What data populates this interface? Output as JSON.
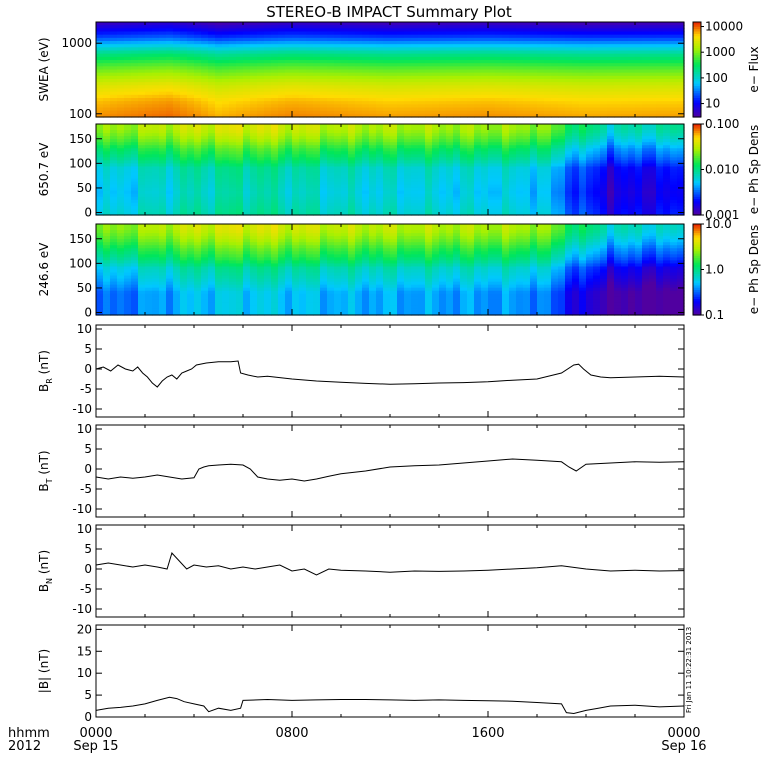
{
  "title": "STEREO-B IMPACT Summary Plot",
  "stamp": "Fri Jan 11 10:22:31 2013",
  "time_axis": {
    "corner_labels": [
      "hhmm",
      "2012"
    ],
    "ticks": [
      {
        "hour": 0,
        "label": "0000",
        "date": "Sep 15"
      },
      {
        "hour": 8,
        "label": "0800",
        "date": ""
      },
      {
        "hour": 16,
        "label": "1600",
        "date": ""
      },
      {
        "hour": 24,
        "label": "0000",
        "date": "Sep 16"
      }
    ],
    "range_hours": [
      0,
      24
    ]
  },
  "chart_data": [
    {
      "type": "heatmap",
      "ylabel": "SWEA (eV)",
      "y_scale": "log",
      "ylim": [
        90,
        2000
      ],
      "yticks": [
        {
          "v": 100,
          "label": "100"
        },
        {
          "v": 1000,
          "label": "1000"
        }
      ],
      "colorbar": {
        "label": "e− Flux",
        "scale": "log",
        "range": [
          3,
          15000
        ],
        "ticks": [
          {
            "v": 10000,
            "label": "10000"
          },
          {
            "v": 1000,
            "label": "1000"
          },
          {
            "v": 100,
            "label": "100"
          },
          {
            "v": 10,
            "label": "10"
          }
        ]
      },
      "description_rows_eV": [
        1800,
        1000,
        600,
        350,
        200,
        120,
        95
      ],
      "flux_profile": [
        4,
        20,
        200,
        800,
        2500,
        5000,
        7000
      ],
      "time_modulation": [
        {
          "hour": 0,
          "f": 1.0
        },
        {
          "hour": 3,
          "f": 1.3
        },
        {
          "hour": 5,
          "f": 0.8
        },
        {
          "hour": 8,
          "f": 1.1
        },
        {
          "hour": 12,
          "f": 0.9
        },
        {
          "hour": 16,
          "f": 1.0
        },
        {
          "hour": 20,
          "f": 0.85
        },
        {
          "hour": 24,
          "f": 0.9
        }
      ]
    },
    {
      "type": "heatmap",
      "ylabel": "650.7 eV",
      "ylim": [
        -5,
        180
      ],
      "yticks": [
        {
          "v": 0,
          "label": "0"
        },
        {
          "v": 50,
          "label": "50"
        },
        {
          "v": 100,
          "label": "100"
        },
        {
          "v": 150,
          "label": "150"
        }
      ],
      "colorbar": {
        "label": "e− Ph Sp Dens",
        "scale": "log",
        "range": [
          0.001,
          0.1
        ],
        "ticks": [
          {
            "v": 0.1,
            "label": "0.100"
          },
          {
            "v": 0.01,
            "label": "0.010"
          },
          {
            "v": 0.001,
            "label": "0.001"
          }
        ]
      },
      "pitch_profile": [
        {
          "angle": 170,
          "v": 0.025
        },
        {
          "angle": 130,
          "v": 0.012
        },
        {
          "angle": 90,
          "v": 0.006
        },
        {
          "angle": 40,
          "v": 0.005
        },
        {
          "angle": 0,
          "v": 0.006
        }
      ],
      "time_modulation": [
        {
          "hour": 0,
          "f": 0.9
        },
        {
          "hour": 4,
          "f": 1.4
        },
        {
          "hour": 6,
          "f": 1.6
        },
        {
          "hour": 10,
          "f": 1.2
        },
        {
          "hour": 14,
          "f": 1.1
        },
        {
          "hour": 18,
          "f": 1.0
        },
        {
          "hour": 19.5,
          "f": 0.5
        },
        {
          "hour": 21,
          "f": 0.3
        },
        {
          "hour": 24,
          "f": 0.35
        }
      ]
    },
    {
      "type": "heatmap",
      "ylabel": "246.6 eV",
      "ylim": [
        -5,
        180
      ],
      "yticks": [
        {
          "v": 0,
          "label": "0"
        },
        {
          "v": 50,
          "label": "50"
        },
        {
          "v": 100,
          "label": "100"
        },
        {
          "v": 150,
          "label": "150"
        }
      ],
      "colorbar": {
        "label": "e− Ph Sp Dens",
        "scale": "log",
        "range": [
          0.1,
          10
        ],
        "ticks": [
          {
            "v": 10,
            "label": "10.0"
          },
          {
            "v": 1,
            "label": "1.0"
          },
          {
            "v": 0.1,
            "label": "0.1"
          }
        ]
      },
      "pitch_profile": [
        {
          "angle": 170,
          "v": 2.5
        },
        {
          "angle": 130,
          "v": 1.3
        },
        {
          "angle": 90,
          "v": 0.6
        },
        {
          "angle": 40,
          "v": 0.35
        },
        {
          "angle": 0,
          "v": 0.35
        }
      ],
      "time_modulation": [
        {
          "hour": 0,
          "f": 0.8
        },
        {
          "hour": 4,
          "f": 1.4
        },
        {
          "hour": 6,
          "f": 1.6
        },
        {
          "hour": 10,
          "f": 1.3
        },
        {
          "hour": 14,
          "f": 1.2
        },
        {
          "hour": 18,
          "f": 1.1
        },
        {
          "hour": 19.5,
          "f": 0.5
        },
        {
          "hour": 21,
          "f": 0.3
        },
        {
          "hour": 24,
          "f": 0.25
        }
      ]
    },
    {
      "type": "line",
      "ylabel_main": "B",
      "ylabel_sub": "R",
      "ylabel_unit": " (nT)",
      "ylim": [
        -12,
        11
      ],
      "yticks": [
        {
          "v": 10,
          "label": "10"
        },
        {
          "v": 5,
          "label": "5"
        },
        {
          "v": 0,
          "label": "0"
        },
        {
          "v": -5,
          "label": "-5"
        },
        {
          "v": -10,
          "label": "-10"
        }
      ],
      "x": [
        0,
        0.3,
        0.6,
        0.9,
        1.2,
        1.5,
        1.7,
        1.9,
        2.1,
        2.3,
        2.5,
        2.7,
        2.9,
        3.1,
        3.3,
        3.5,
        3.7,
        3.9,
        4.1,
        4.5,
        5.0,
        5.5,
        5.8,
        5.9,
        6.2,
        6.6,
        7.0,
        8.0,
        9.0,
        10.0,
        11.0,
        12.0,
        13.0,
        14.0,
        15.0,
        16.0,
        17.0,
        18.0,
        19.0,
        19.5,
        19.7,
        19.9,
        20.2,
        20.6,
        21.0,
        22.0,
        23.0,
        24.0
      ],
      "values": [
        0,
        0.5,
        -0.5,
        1,
        0,
        -0.5,
        0.5,
        -1,
        -2,
        -3.5,
        -4.5,
        -3,
        -2,
        -1.5,
        -2.5,
        -1,
        -0.5,
        0,
        1,
        1.5,
        1.8,
        1.8,
        2,
        -1,
        -1.5,
        -2,
        -1.8,
        -2.5,
        -3,
        -3.3,
        -3.6,
        -3.8,
        -3.7,
        -3.5,
        -3.4,
        -3.2,
        -2.8,
        -2.5,
        -1,
        1,
        1.2,
        0,
        -1.5,
        -2,
        -2.2,
        -2,
        -1.8,
        -2
      ]
    },
    {
      "type": "line",
      "ylabel_main": "B",
      "ylabel_sub": "T",
      "ylabel_unit": " (nT)",
      "ylim": [
        -12,
        11
      ],
      "yticks": [
        {
          "v": 10,
          "label": "10"
        },
        {
          "v": 5,
          "label": "5"
        },
        {
          "v": 0,
          "label": "0"
        },
        {
          "v": -5,
          "label": "-5"
        },
        {
          "v": -10,
          "label": "-10"
        }
      ],
      "x": [
        0,
        0.5,
        1.0,
        1.5,
        2.0,
        2.5,
        3.0,
        3.5,
        4.0,
        4.2,
        4.4,
        4.6,
        5.0,
        5.5,
        6.0,
        6.3,
        6.6,
        7.0,
        7.5,
        8.0,
        8.5,
        9.0,
        9.5,
        10.0,
        11.0,
        12.0,
        13.0,
        14.0,
        15.0,
        16.0,
        17.0,
        18.0,
        19.0,
        19.3,
        19.6,
        20.0,
        21.0,
        22.0,
        23.0,
        24.0
      ],
      "values": [
        -2,
        -2.5,
        -2,
        -2.3,
        -2,
        -1.5,
        -2,
        -2.5,
        -2.2,
        0,
        0.5,
        0.8,
        1,
        1.2,
        1,
        0,
        -2,
        -2.5,
        -2.8,
        -2.5,
        -3,
        -2.5,
        -1.8,
        -1.2,
        -0.5,
        0.5,
        0.8,
        1,
        1.5,
        2,
        2.5,
        2.2,
        1.8,
        0.5,
        -0.5,
        1.2,
        1.5,
        1.8,
        1.7,
        1.8
      ]
    },
    {
      "type": "line",
      "ylabel_main": "B",
      "ylabel_sub": "N",
      "ylabel_unit": " (nT)",
      "ylim": [
        -12,
        11
      ],
      "yticks": [
        {
          "v": 10,
          "label": "10"
        },
        {
          "v": 5,
          "label": "5"
        },
        {
          "v": 0,
          "label": "0"
        },
        {
          "v": -5,
          "label": "-5"
        },
        {
          "v": -10,
          "label": "-10"
        }
      ],
      "x": [
        0,
        0.5,
        1.0,
        1.5,
        2.0,
        2.5,
        2.9,
        3.1,
        3.4,
        3.7,
        4.0,
        4.5,
        5.0,
        5.5,
        6.0,
        6.5,
        7.0,
        7.5,
        8.0,
        8.5,
        9.0,
        9.5,
        10.0,
        11.0,
        12.0,
        13.0,
        14.0,
        15.0,
        16.0,
        17.0,
        18.0,
        19.0,
        20.0,
        21.0,
        22.0,
        23.0,
        24.0
      ],
      "values": [
        1,
        1.5,
        1,
        0.5,
        1,
        0.5,
        0,
        4,
        2,
        0,
        1,
        0.5,
        0.8,
        0,
        0.5,
        0,
        0.5,
        1,
        -0.5,
        0,
        -1.5,
        0,
        -0.3,
        -0.5,
        -0.8,
        -0.5,
        -0.6,
        -0.5,
        -0.3,
        0,
        0.3,
        0.8,
        0,
        -0.5,
        -0.3,
        -0.5,
        -0.4
      ]
    },
    {
      "type": "line",
      "ylabel": "|B| (nT)",
      "ylim": [
        0,
        21
      ],
      "yticks": [
        {
          "v": 20,
          "label": "20"
        },
        {
          "v": 15,
          "label": "15"
        },
        {
          "v": 10,
          "label": "10"
        },
        {
          "v": 5,
          "label": "5"
        },
        {
          "v": 0,
          "label": "0"
        }
      ],
      "x": [
        0,
        0.5,
        1.0,
        1.5,
        2.0,
        2.5,
        3.0,
        3.3,
        3.6,
        4.0,
        4.4,
        4.6,
        5.0,
        5.5,
        5.9,
        6.0,
        7.0,
        8.0,
        9.0,
        10.0,
        11.0,
        12.0,
        13.0,
        14.0,
        15.0,
        16.0,
        17.0,
        18.0,
        19.0,
        19.2,
        19.5,
        20.0,
        20.5,
        21.0,
        22.0,
        23.0,
        24.0
      ],
      "values": [
        1.5,
        2,
        2.2,
        2.5,
        3,
        3.8,
        4.5,
        4.2,
        3.5,
        3,
        2.5,
        1.2,
        2,
        1.5,
        2,
        3.8,
        4,
        3.8,
        3.9,
        4,
        4,
        3.9,
        3.8,
        3.9,
        3.8,
        3.7,
        3.6,
        3.3,
        3,
        1,
        0.8,
        1.5,
        2,
        2.5,
        2.7,
        2.3,
        2.5
      ]
    }
  ]
}
